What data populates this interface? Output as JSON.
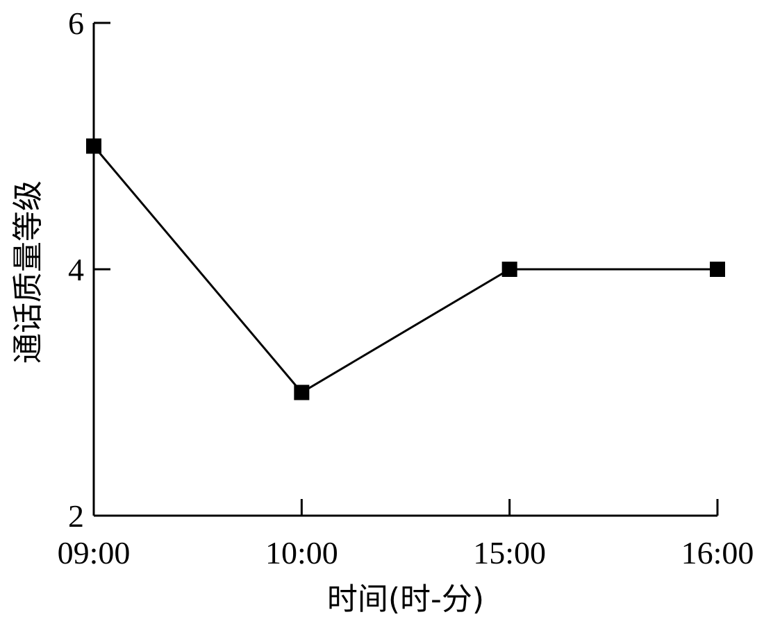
{
  "chart_data": {
    "type": "line",
    "categories": [
      "09:00",
      "10:00",
      "15:00",
      "16:00"
    ],
    "series": [
      {
        "values": [
          5,
          3,
          4,
          4
        ]
      }
    ],
    "xlabel": "时间(时-分)",
    "ylabel": "通话质量等级",
    "ylim": [
      2,
      6
    ],
    "yticks": [
      2,
      4,
      6
    ],
    "grid": false,
    "marker": "square",
    "line_color": "#000000"
  }
}
